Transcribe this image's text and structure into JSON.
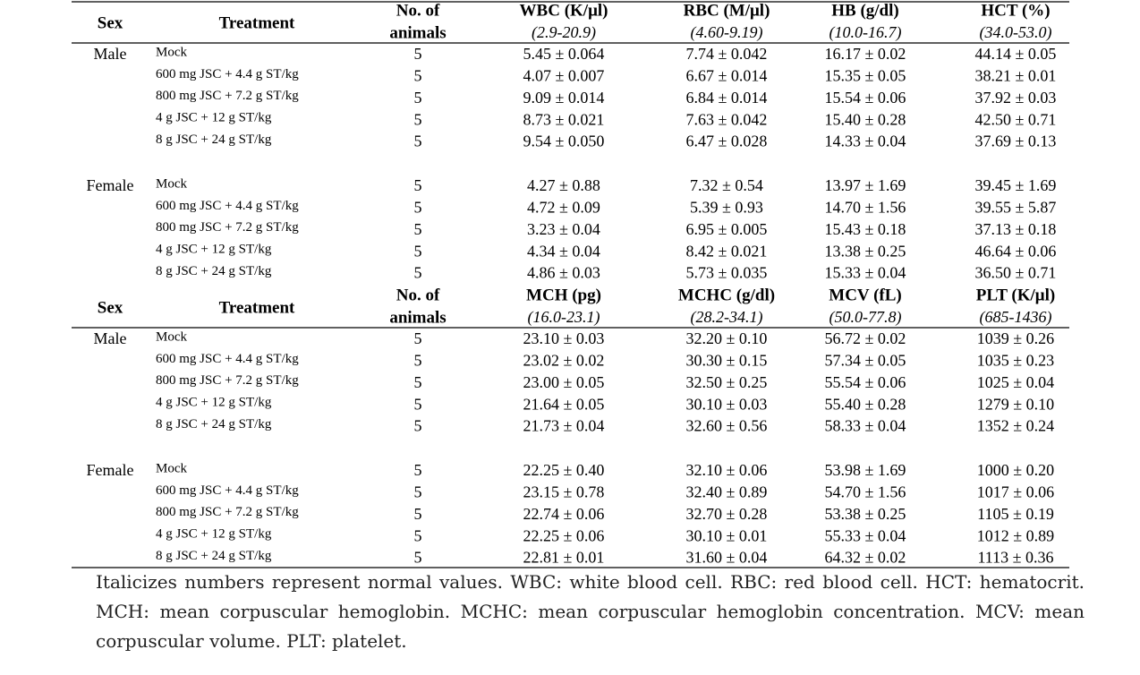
{
  "tables": [
    {
      "header": {
        "sex": "Sex",
        "treatment": "Treatment",
        "animals": [
          "No. of",
          "animals"
        ],
        "columns": [
          {
            "name": "WBC (K/μl)",
            "range": "(2.9-20.9)"
          },
          {
            "name": "RBC (M/μl)",
            "range": "(4.60-9.19)"
          },
          {
            "name": "HB (g/dl)",
            "range": "(10.0-16.7)"
          },
          {
            "name": "HCT (%)",
            "range": "(34.0-53.0)"
          }
        ]
      },
      "groups": [
        {
          "sex": "Male",
          "rows": [
            {
              "treatment": "Mock",
              "n": 5,
              "values": [
                "5.45 ± 0.064",
                "7.74 ± 0.042",
                "16.17 ± 0.02",
                "44.14 ± 0.05"
              ]
            },
            {
              "treatment": "600 mg JSC + 4.4 g ST/kg",
              "n": 5,
              "values": [
                "4.07 ± 0.007",
                "6.67 ± 0.014",
                "15.35 ± 0.05",
                "38.21 ± 0.01"
              ]
            },
            {
              "treatment": "800 mg JSC + 7.2 g ST/kg",
              "n": 5,
              "values": [
                "9.09 ± 0.014",
                "6.84 ± 0.014",
                "15.54 ± 0.06",
                "37.92 ± 0.03"
              ]
            },
            {
              "treatment": "4 g JSC + 12 g ST/kg",
              "n": 5,
              "values": [
                "8.73 ± 0.021",
                "7.63 ± 0.042",
                "15.40 ± 0.28",
                "42.50 ± 0.71"
              ]
            },
            {
              "treatment": "8 g JSC + 24 g ST/kg",
              "n": 5,
              "values": [
                "9.54 ± 0.050",
                "6.47 ± 0.028",
                "14.33 ± 0.04",
                "37.69 ± 0.13"
              ]
            }
          ]
        },
        {
          "sex": "Female",
          "rows": [
            {
              "treatment": "Mock",
              "n": 5,
              "values": [
                "4.27 ± 0.88",
                "7.32 ± 0.54",
                "13.97 ± 1.69",
                "39.45 ± 1.69"
              ]
            },
            {
              "treatment": "600 mg JSC + 4.4 g ST/kg",
              "n": 5,
              "values": [
                "4.72 ± 0.09",
                "5.39 ± 0.93",
                "14.70 ± 1.56",
                "39.55 ± 5.87"
              ]
            },
            {
              "treatment": "800 mg JSC + 7.2 g ST/kg",
              "n": 5,
              "values": [
                "3.23 ± 0.04",
                "6.95 ± 0.005",
                "15.43 ± 0.18",
                "37.13 ± 0.18"
              ]
            },
            {
              "treatment": "4 g JSC + 12 g ST/kg",
              "n": 5,
              "values": [
                "4.34 ± 0.04",
                "8.42 ± 0.021",
                "13.38 ± 0.25",
                "46.64 ± 0.06"
              ]
            },
            {
              "treatment": "8 g JSC + 24 g ST/kg",
              "n": 5,
              "values": [
                "4.86 ± 0.03",
                "5.73 ± 0.035",
                "15.33 ± 0.04",
                "36.50 ± 0.71"
              ]
            }
          ]
        }
      ]
    },
    {
      "header": {
        "sex": "Sex",
        "treatment": "Treatment",
        "animals": [
          "No. of",
          "animals"
        ],
        "columns": [
          {
            "name": "MCH (pg)",
            "range": "(16.0-23.1)"
          },
          {
            "name": "MCHC (g/dl)",
            "range": "(28.2-34.1)"
          },
          {
            "name": "MCV (fL)",
            "range": "(50.0-77.8)"
          },
          {
            "name": "PLT (K/μl)",
            "range": "(685-1436)"
          }
        ]
      },
      "groups": [
        {
          "sex": "Male",
          "rows": [
            {
              "treatment": "Mock",
              "n": 5,
              "values": [
                "23.10 ± 0.03",
                "32.20 ± 0.10",
                "56.72 ± 0.02",
                "1039 ± 0.26"
              ]
            },
            {
              "treatment": "600 mg JSC + 4.4 g ST/kg",
              "n": 5,
              "values": [
                "23.02 ± 0.02",
                "30.30 ± 0.15",
                "57.34 ± 0.05",
                "1035 ± 0.23"
              ]
            },
            {
              "treatment": "800 mg JSC + 7.2 g ST/kg",
              "n": 5,
              "values": [
                "23.00 ± 0.05",
                "32.50 ± 0.25",
                "55.54 ± 0.06",
                "1025 ± 0.04"
              ]
            },
            {
              "treatment": "4 g JSC + 12 g ST/kg",
              "n": 5,
              "values": [
                "21.64 ± 0.05",
                "30.10 ± 0.03",
                "55.40 ± 0.28",
                "1279 ± 0.10"
              ]
            },
            {
              "treatment": "8 g JSC + 24 g ST/kg",
              "n": 5,
              "values": [
                "21.73 ± 0.04",
                "32.60 ± 0.56",
                "58.33 ± 0.04",
                "1352 ± 0.24"
              ]
            }
          ]
        },
        {
          "sex": "Female",
          "rows": [
            {
              "treatment": "Mock",
              "n": 5,
              "values": [
                "22.25 ± 0.40",
                "32.10 ± 0.06",
                "53.98 ± 1.69",
                "1000 ± 0.20"
              ]
            },
            {
              "treatment": "600 mg JSC + 4.4 g ST/kg",
              "n": 5,
              "values": [
                "23.15 ± 0.78",
                "32.40 ± 0.89",
                "54.70 ± 1.56",
                "1017 ± 0.06"
              ]
            },
            {
              "treatment": "800 mg JSC + 7.2 g ST/kg",
              "n": 5,
              "values": [
                "22.74 ± 0.06",
                "32.70 ± 0.28",
                "53.38 ± 0.25",
                "1105 ± 0.19"
              ]
            },
            {
              "treatment": "4 g JSC + 12 g ST/kg",
              "n": 5,
              "values": [
                "22.25 ± 0.06",
                "30.10 ± 0.01",
                "55.33 ± 0.04",
                "1012 ± 0.89"
              ]
            },
            {
              "treatment": "8 g JSC + 24 g ST/kg",
              "n": 5,
              "values": [
                "22.81 ± 0.01",
                "31.60 ± 0.04",
                "64.32 ± 0.02",
                "1113 ± 0.36"
              ]
            }
          ]
        }
      ]
    }
  ],
  "footnote": "Italicizes numbers represent normal values. WBC: white blood cell. RBC: red blood cell. HCT: hematocrit. MCH: mean corpuscular hemoglobin. MCHC: mean corpuscular hemoglobin concentration. MCV: mean corpuscular volume. PLT: platelet."
}
